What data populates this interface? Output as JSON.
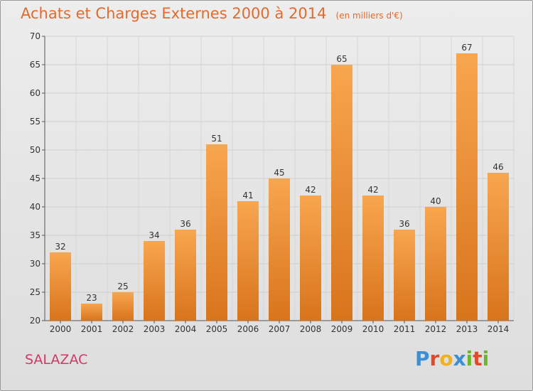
{
  "title": "Achats et Charges Externes 2000 à 2014",
  "unit_note": "(en milliers d'€)",
  "commune": "SALAZAC",
  "logo": {
    "letters": [
      "P",
      "r",
      "o",
      "x",
      "i",
      "t",
      "i"
    ],
    "colors": [
      "#3a8fd6",
      "#e04a2a",
      "#f0b21a",
      "#3a8fd6",
      "#6fb52c",
      "#e04a2a",
      "#6fb52c"
    ]
  },
  "colors": {
    "title": "#e5692a",
    "bar_top": "#f8a64f",
    "bar_bottom": "#d8741c",
    "commune": "#d03a64"
  },
  "chart_data": {
    "type": "bar",
    "title": "Achats et Charges Externes 2000 à 2014",
    "subtitle": "(en milliers d'€)",
    "categories": [
      "2000",
      "2001",
      "2002",
      "2003",
      "2004",
      "2005",
      "2006",
      "2007",
      "2008",
      "2009",
      "2010",
      "2011",
      "2012",
      "2013",
      "2014"
    ],
    "values": [
      32,
      23,
      25,
      34,
      36,
      51,
      41,
      45,
      42,
      65,
      42,
      36,
      40,
      67,
      46
    ],
    "ylim": [
      20,
      70
    ],
    "yticks": [
      20,
      25,
      30,
      35,
      40,
      45,
      50,
      55,
      60,
      65,
      70
    ],
    "grid": true,
    "data_labels": true
  }
}
